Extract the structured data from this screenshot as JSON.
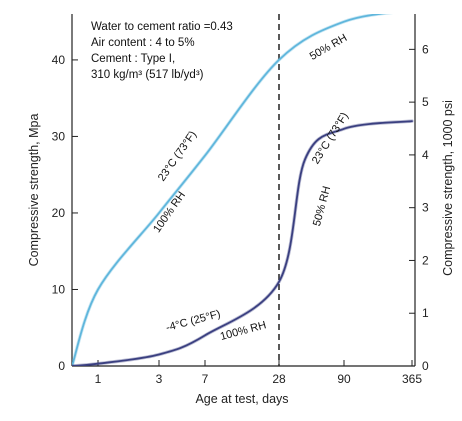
{
  "chart_data": {
    "type": "line",
    "xlabel": "Age at test, days",
    "ylabel": "Compressive strength, Mpa",
    "y2label": "Compressive strength, 1000 psi",
    "x_ticks": [
      "1",
      "3",
      "7",
      "28",
      "90",
      "365"
    ],
    "y_ticks": [
      "0",
      "10",
      "20",
      "30",
      "40"
    ],
    "y2_ticks": [
      "0",
      "1",
      "2",
      "3",
      "4",
      "5",
      "6"
    ],
    "ylim": [
      0,
      46
    ],
    "y2lim": [
      0,
      6.67
    ],
    "grid": false,
    "reference_line": {
      "x": "28",
      "style": "dashed"
    },
    "colors": {
      "upper_curve": "#5fb6dc",
      "lower_curve": "#3a3f80",
      "dashed_line": "#222222"
    },
    "notes": [
      "Water to cement ratio =0.43",
      "Air content : 4 to 5%",
      "Cement : Type I,",
      "310 kg/m³ (517 lb/yd³)"
    ],
    "curve_labels": {
      "upper_temp": "23°C (73°F)",
      "upper_rh": "100% RH",
      "upper_rh_after": "50% RH",
      "lower_temp": "-4°C (25°F)",
      "lower_rh": "100% RH",
      "lower_temp_after": "23°C (73°F)",
      "lower_rh_after": "50% RH"
    },
    "series": [
      {
        "x": [
          "0",
          "1",
          "3",
          "7",
          "28",
          "90",
          "365"
        ],
        "values": [
          0,
          10,
          20,
          27.5,
          40,
          45,
          46.5
        ]
      },
      {
        "x": [
          "0",
          "1",
          "3",
          "7",
          "28",
          "45",
          "90",
          "365"
        ],
        "values": [
          0,
          0.3,
          1.5,
          4,
          11,
          27,
          31,
          32
        ]
      }
    ]
  }
}
